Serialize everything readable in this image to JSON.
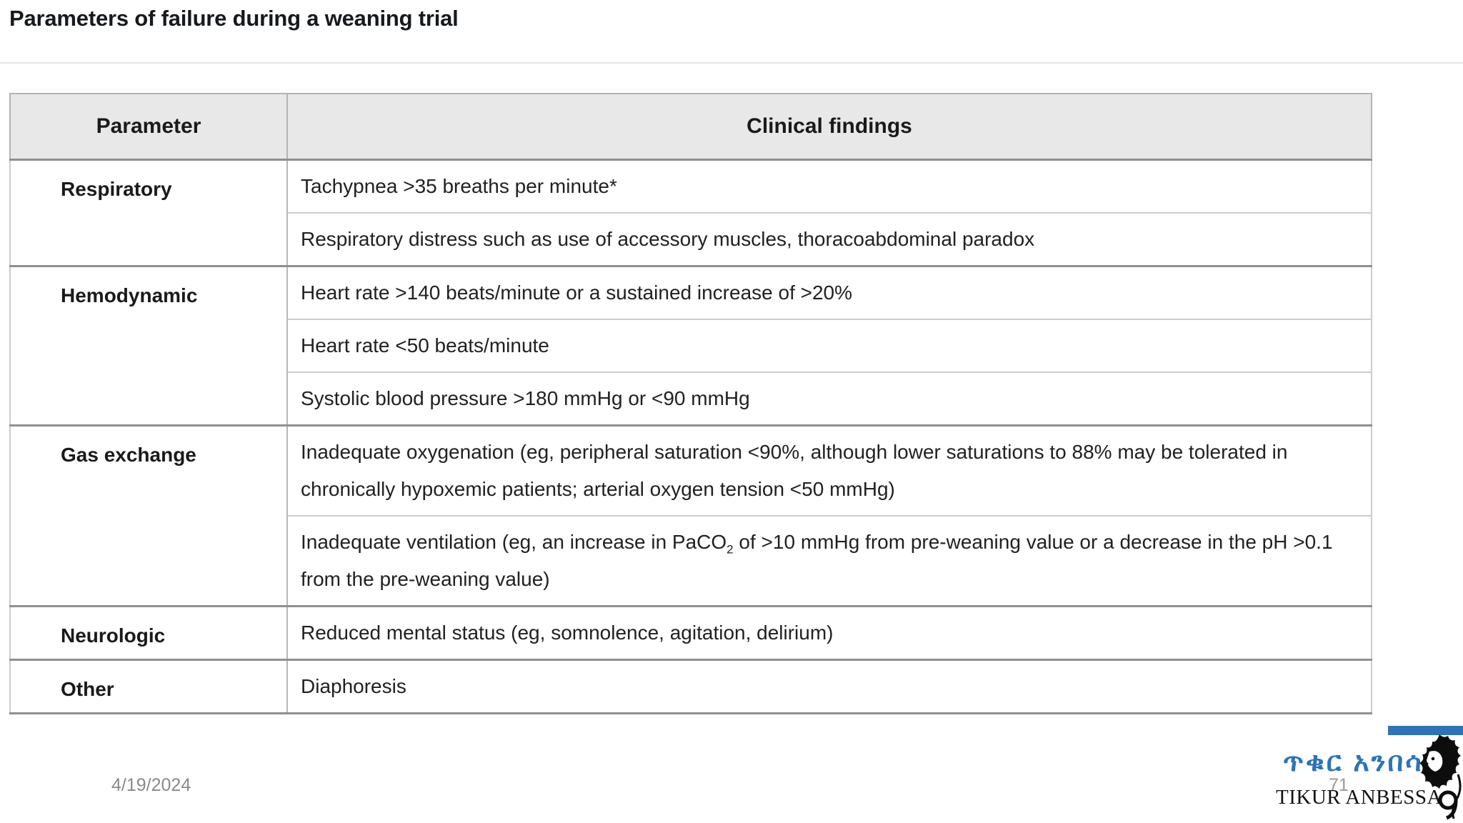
{
  "page": {
    "title": "Parameters of failure during a weaning trial",
    "date": "4/19/2024",
    "slide_number": "71"
  },
  "table": {
    "columns": [
      "Parameter",
      "Clinical findings"
    ],
    "groups": [
      {
        "parameter": "Respiratory",
        "findings": [
          {
            "text": "Tachypnea >35 breaths per minute*"
          },
          {
            "text": "Respiratory distress such as use of accessory muscles, thoracoabdominal paradox"
          }
        ]
      },
      {
        "parameter": "Hemodynamic",
        "findings": [
          {
            "text": "Heart rate >140 beats/minute or a sustained increase of >20%"
          },
          {
            "text": "Heart rate <50 beats/minute"
          },
          {
            "text": "Systolic blood pressure >180 mmHg or <90 mmHg"
          }
        ]
      },
      {
        "parameter": "Gas exchange",
        "findings": [
          {
            "text": "Inadequate oxygenation (eg, peripheral saturation <90%, although lower saturations to 88% may be tolerated in chronically hypoxemic patients; arterial oxygen tension <50 mmHg)"
          },
          {
            "pre": "Inadequate ventilation (eg, an increase in PaCO",
            "sub": "2",
            "post": " of >10 mmHg from pre-weaning value or a decrease in the pH >0.1 from the pre-weaning value)"
          }
        ]
      },
      {
        "parameter": "Neurologic",
        "findings": [
          {
            "text": "Reduced mental status (eg, somnolence, agitation, delirium)"
          }
        ]
      },
      {
        "parameter": "Other",
        "findings": [
          {
            "text": "Diaphoresis"
          }
        ]
      }
    ]
  },
  "logo": {
    "amharic": "ጥቁር አንበሳ",
    "name": "TIKUR ANBESSA"
  },
  "colors": {
    "accent_blue": "#2e74b5",
    "header_bg": "#e8e8e8",
    "border_gray": "#b3b3b3",
    "group_border": "#8f8f8f",
    "body_text": "#212121",
    "muted_gray": "#8a8a8a"
  }
}
